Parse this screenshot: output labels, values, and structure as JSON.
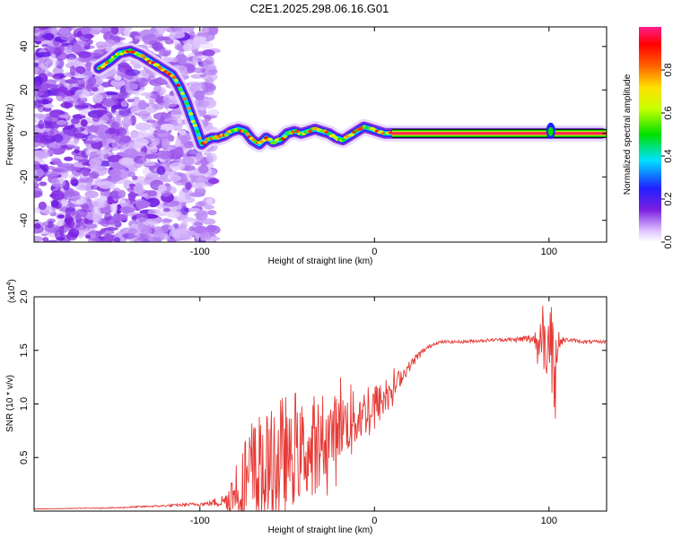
{
  "title": "C2E1.2025.298.06.16.G01",
  "chart_data": [
    {
      "type": "heatmap",
      "title": "C2E1.2025.298.06.16.G01",
      "xlabel": "Height of straight line (km)",
      "ylabel": "Frequency (Hz)",
      "xlim": [
        -195,
        133
      ],
      "ylim": [
        -50,
        49
      ],
      "xticks": [
        -100,
        0,
        100
      ],
      "yticks": [
        -40,
        -20,
        0,
        20,
        40
      ],
      "colorbar": {
        "label": "Normalized spectral amplitude",
        "range": [
          0,
          1
        ],
        "ticks": [
          0.0,
          0.2,
          0.4,
          0.6,
          0.8
        ],
        "tick_labels": [
          "0.0",
          "0.2",
          "0.4",
          "0.6",
          "0.8"
        ]
      },
      "ridge": {
        "description": "dominant frequency track",
        "x": [
          -158,
          -152,
          -146,
          -140,
          -134,
          -128,
          -122,
          -116,
          -112,
          -108,
          -105,
          -102,
          -99,
          -96,
          -93,
          -90,
          -86,
          -82,
          -78,
          -74,
          -70,
          -66,
          -62,
          -58,
          -54,
          -50,
          -46,
          -42,
          -38,
          -34,
          -30,
          -26,
          -22,
          -18,
          -14,
          -10,
          -6,
          -2,
          2,
          6,
          10,
          130
        ],
        "y": [
          30,
          33,
          37,
          38,
          36,
          33,
          30,
          27,
          22,
          15,
          8,
          2,
          -5,
          -3,
          -2,
          -2,
          -1,
          1,
          2,
          1,
          -3,
          -5,
          -2,
          -4,
          -3,
          0,
          1,
          0,
          1,
          2,
          1,
          0,
          -2,
          -3,
          -1,
          1,
          3,
          2,
          1,
          0,
          0,
          0
        ],
        "stable_frequency": 0,
        "stable_from_x": 10,
        "blip_at_x": 101
      }
    },
    {
      "type": "line",
      "xlabel": "Height of straight line (km)",
      "ylabel": "SNR (10 * v/v)",
      "yscale_label": "(x10",
      "yscale_exp": "4",
      "yscale_close": ")",
      "xlim": [
        -195,
        133
      ],
      "ylim": [
        0,
        2.0
      ],
      "xticks": [
        -100,
        0,
        100
      ],
      "yticks": [
        0.5,
        1.0,
        1.5,
        2.0
      ],
      "ytick_labels": [
        "0.5",
        "1.0",
        "1.5",
        "2.0"
      ],
      "series": [
        {
          "name": "SNR",
          "color": "#e53935",
          "x": [
            -195,
            -150,
            -120,
            -95,
            -85,
            -80,
            -75,
            -70,
            -65,
            -60,
            -55,
            -50,
            -45,
            -40,
            -35,
            -30,
            -25,
            -20,
            -15,
            -10,
            -5,
            0,
            5,
            10,
            15,
            20,
            25,
            30,
            35,
            40,
            50,
            60,
            70,
            80,
            90,
            95,
            100,
            103,
            106,
            110,
            120,
            133
          ],
          "y": [
            0.02,
            0.03,
            0.05,
            0.07,
            0.1,
            0.2,
            0.3,
            0.35,
            0.4,
            0.45,
            0.5,
            0.52,
            0.55,
            0.6,
            0.55,
            0.65,
            0.75,
            0.85,
            0.85,
            0.9,
            0.95,
            1.0,
            1.05,
            1.15,
            1.25,
            1.35,
            1.45,
            1.52,
            1.57,
            1.58,
            1.58,
            1.59,
            1.6,
            1.6,
            1.61,
            1.6,
            1.6,
            1.55,
            1.58,
            1.6,
            1.58,
            1.58
          ],
          "noise_amplitude": [
            0.0,
            0.005,
            0.01,
            0.02,
            0.08,
            0.2,
            0.3,
            0.5,
            0.45,
            0.5,
            0.45,
            0.35,
            0.4,
            0.35,
            0.35,
            0.3,
            0.3,
            0.3,
            0.25,
            0.25,
            0.2,
            0.2,
            0.15,
            0.12,
            0.08,
            0.05,
            0.04,
            0.02,
            0.015,
            0.015,
            0.015,
            0.015,
            0.015,
            0.02,
            0.05,
            0.15,
            0.4,
            0.45,
            0.05,
            0.02,
            0.015,
            0.015
          ]
        }
      ]
    }
  ]
}
